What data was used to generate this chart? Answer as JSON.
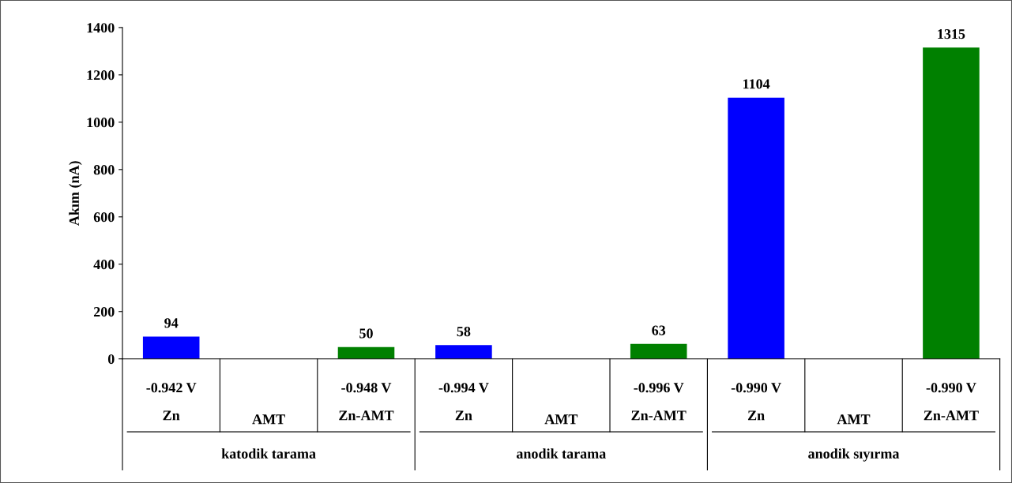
{
  "chart_data": {
    "type": "bar",
    "ylabel": "Akım (nA)",
    "categories": [
      "-0.942 V\nZn",
      "AMT",
      "-0.948 V\nZn-AMT",
      "-0.994 V\nZn",
      "AMT",
      "-0.996 V\nZn-AMT",
      "-0.990 V\nZn",
      "AMT",
      "-0.990 V\nZn-AMT"
    ],
    "values": [
      94,
      null,
      50,
      58,
      null,
      63,
      1104,
      null,
      1315
    ],
    "colors": [
      "#0000ff",
      null,
      "#008000",
      "#0000ff",
      null,
      "#008000",
      "#0000ff",
      null,
      "#008000"
    ],
    "annotations": [
      "katodik tarama",
      "anodik tarama",
      "anodik sıyırma"
    ],
    "data_labels": true,
    "grid": false,
    "ylim": [
      0,
      1400
    ],
    "yticks": [
      0,
      200,
      400,
      600,
      800,
      1000,
      1200,
      1400
    ]
  }
}
